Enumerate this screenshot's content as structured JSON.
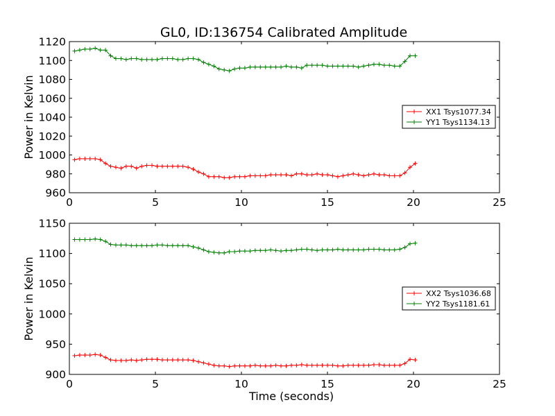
{
  "figure": {
    "title": "GL0, ID:136754 Calibrated Amplitude",
    "background": "#ffffff"
  },
  "chart_data": [
    {
      "type": "line",
      "title": "GL0, ID:136754 Calibrated Amplitude",
      "xlabel": "",
      "ylabel": "Power in Kelvin",
      "xlim": [
        0,
        25
      ],
      "ylim": [
        960,
        1120
      ],
      "xticks": [
        0,
        5,
        10,
        15,
        20,
        25
      ],
      "yticks": [
        960,
        980,
        1000,
        1020,
        1040,
        1060,
        1080,
        1100,
        1120
      ],
      "grid": false,
      "legend_position": "center-right",
      "x": [
        0.3,
        0.6,
        0.9,
        1.2,
        1.5,
        1.8,
        2.1,
        2.4,
        2.7,
        3.0,
        3.3,
        3.6,
        3.9,
        4.2,
        4.5,
        4.8,
        5.1,
        5.4,
        5.7,
        6.0,
        6.3,
        6.6,
        6.9,
        7.2,
        7.5,
        7.8,
        8.1,
        8.4,
        8.7,
        9.0,
        9.3,
        9.6,
        9.9,
        10.2,
        10.5,
        10.8,
        11.1,
        11.4,
        11.7,
        12.0,
        12.3,
        12.6,
        12.9,
        13.2,
        13.5,
        13.8,
        14.1,
        14.4,
        14.7,
        15.0,
        15.3,
        15.6,
        15.9,
        16.2,
        16.5,
        16.8,
        17.1,
        17.4,
        17.7,
        18.0,
        18.3,
        18.6,
        18.9,
        19.2,
        19.5,
        19.8,
        20.1
      ],
      "series": [
        {
          "name": "XX1 Tsys1077.34",
          "color": "#ff0000",
          "values": [
            995,
            996,
            996,
            996,
            996,
            995,
            991,
            988,
            987,
            986,
            988,
            988,
            986,
            988,
            989,
            989,
            988,
            988,
            988,
            988,
            988,
            988,
            987,
            985,
            982,
            980,
            977,
            977,
            977,
            976,
            976,
            977,
            977,
            977,
            978,
            978,
            978,
            978,
            979,
            979,
            979,
            979,
            978,
            980,
            980,
            979,
            979,
            980,
            979,
            979,
            978,
            977,
            978,
            979,
            980,
            979,
            978,
            979,
            980,
            979,
            979,
            978,
            978,
            978,
            981,
            987,
            991
          ]
        },
        {
          "name": "YY1 Tsys1134.13",
          "color": "#008000",
          "values": [
            1110,
            1111,
            1112,
            1112,
            1113,
            1111,
            1111,
            1105,
            1102,
            1102,
            1101,
            1102,
            1102,
            1101,
            1101,
            1101,
            1101,
            1102,
            1102,
            1102,
            1101,
            1101,
            1102,
            1102,
            1101,
            1098,
            1096,
            1094,
            1091,
            1090,
            1089,
            1091,
            1092,
            1092,
            1093,
            1093,
            1093,
            1093,
            1093,
            1093,
            1093,
            1094,
            1093,
            1093,
            1092,
            1095,
            1095,
            1095,
            1095,
            1094,
            1094,
            1094,
            1094,
            1094,
            1094,
            1093,
            1094,
            1095,
            1096,
            1096,
            1095,
            1095,
            1094,
            1094,
            1099,
            1105,
            1105
          ]
        }
      ]
    },
    {
      "type": "line",
      "title": "",
      "xlabel": "Time (seconds)",
      "ylabel": "Power in Kelvin",
      "xlim": [
        0,
        25
      ],
      "ylim": [
        900,
        1150
      ],
      "xticks": [
        0,
        5,
        10,
        15,
        20,
        25
      ],
      "yticks": [
        900,
        950,
        1000,
        1050,
        1100,
        1150
      ],
      "grid": false,
      "legend_position": "center-right",
      "x": [
        0.3,
        0.6,
        0.9,
        1.2,
        1.5,
        1.8,
        2.1,
        2.4,
        2.7,
        3.0,
        3.3,
        3.6,
        3.9,
        4.2,
        4.5,
        4.8,
        5.1,
        5.4,
        5.7,
        6.0,
        6.3,
        6.6,
        6.9,
        7.2,
        7.5,
        7.8,
        8.1,
        8.4,
        8.7,
        9.0,
        9.3,
        9.6,
        9.9,
        10.2,
        10.5,
        10.8,
        11.1,
        11.4,
        11.7,
        12.0,
        12.3,
        12.6,
        12.9,
        13.2,
        13.5,
        13.8,
        14.1,
        14.4,
        14.7,
        15.0,
        15.3,
        15.6,
        15.9,
        16.2,
        16.5,
        16.8,
        17.1,
        17.4,
        17.7,
        18.0,
        18.3,
        18.6,
        18.9,
        19.2,
        19.5,
        19.8,
        20.1
      ],
      "series": [
        {
          "name": "XX2 Tsys1036.68",
          "color": "#ff0000",
          "values": [
            931,
            932,
            932,
            932,
            933,
            932,
            928,
            924,
            923,
            923,
            923,
            924,
            923,
            924,
            925,
            925,
            925,
            924,
            924,
            924,
            924,
            924,
            924,
            923,
            921,
            919,
            917,
            915,
            914,
            914,
            913,
            914,
            914,
            914,
            914,
            915,
            914,
            914,
            914,
            915,
            914,
            914,
            915,
            915,
            916,
            915,
            915,
            915,
            915,
            915,
            915,
            914,
            914,
            915,
            915,
            915,
            915,
            915,
            916,
            916,
            915,
            915,
            915,
            915,
            918,
            925,
            924
          ]
        },
        {
          "name": "YY2 Tsys1181.61",
          "color": "#008000",
          "values": [
            1123,
            1123,
            1123,
            1123,
            1124,
            1123,
            1120,
            1115,
            1114,
            1114,
            1114,
            1113,
            1113,
            1113,
            1113,
            1113,
            1114,
            1114,
            1113,
            1113,
            1113,
            1113,
            1113,
            1111,
            1109,
            1106,
            1103,
            1102,
            1101,
            1101,
            1103,
            1103,
            1104,
            1104,
            1104,
            1105,
            1105,
            1105,
            1106,
            1105,
            1104,
            1105,
            1105,
            1106,
            1107,
            1107,
            1106,
            1105,
            1106,
            1106,
            1106,
            1107,
            1106,
            1106,
            1106,
            1106,
            1106,
            1107,
            1107,
            1107,
            1106,
            1106,
            1106,
            1107,
            1110,
            1116,
            1117
          ]
        }
      ]
    }
  ]
}
